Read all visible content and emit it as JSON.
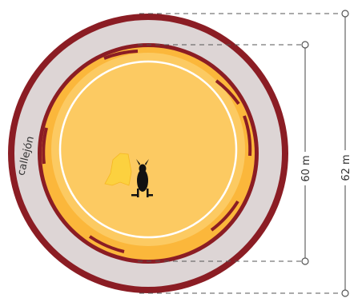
{
  "labels": {
    "callejon": "callejón",
    "inner_diameter": "60 m",
    "outer_diameter": "62 m"
  },
  "colors": {
    "outer_wall": "#8b1d24",
    "callejon_floor": "#ddd5d5",
    "arena_sand": "#fbb73b",
    "arena_inner": "#fcca62",
    "burladero": "#8b1d24",
    "dimension_line": "#555555"
  },
  "icons": {
    "bull": "bull-silhouette-icon",
    "cape": "cape-icon"
  }
}
